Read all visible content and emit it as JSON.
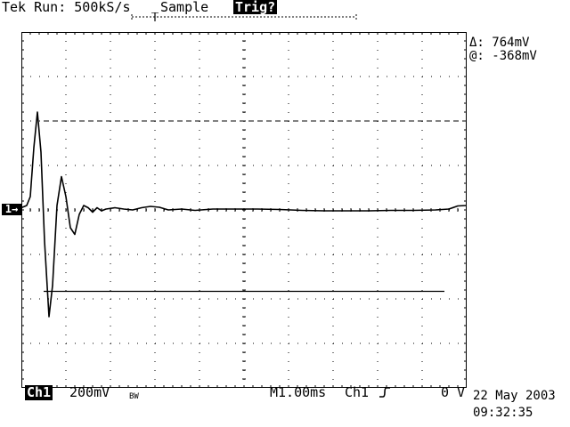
{
  "header": {
    "run_status": "Tek Run: 500kS/s",
    "acquisition_mode": "Sample",
    "trigger_status": "Trig?"
  },
  "measurements": {
    "delta": "Δ: 764mV",
    "at": "@: -368mV"
  },
  "channel_marker": "1→",
  "footer": {
    "channel": "Ch1",
    "scale": "200mV",
    "bw_indicator": "BW",
    "timebase": "M1.00ms",
    "trigger_source": "Ch1",
    "trigger_slope_icon": "rising-edge-icon",
    "trigger_level": "0 V"
  },
  "timestamp": {
    "date": "22 May 2003",
    "time": "09:32:35"
  },
  "chart_data": {
    "type": "line",
    "grid": true,
    "x_divisions": 10,
    "y_divisions": 8,
    "xlim": [
      0,
      10
    ],
    "ylim": [
      -4,
      4
    ],
    "cursor_upper_div": 2.0,
    "cursor_lower_div": -1.83,
    "series": [
      {
        "points": [
          [
            0.0,
            0.05
          ],
          [
            0.12,
            0.1
          ],
          [
            0.2,
            0.3
          ],
          [
            0.28,
            1.4
          ],
          [
            0.36,
            2.2
          ],
          [
            0.44,
            1.3
          ],
          [
            0.52,
            -0.7
          ],
          [
            0.62,
            -2.4
          ],
          [
            0.7,
            -1.7
          ],
          [
            0.8,
            0.1
          ],
          [
            0.9,
            0.75
          ],
          [
            1.0,
            0.3
          ],
          [
            1.1,
            -0.4
          ],
          [
            1.2,
            -0.55
          ],
          [
            1.3,
            -0.1
          ],
          [
            1.4,
            0.1
          ],
          [
            1.5,
            0.05
          ],
          [
            1.6,
            -0.05
          ],
          [
            1.7,
            0.05
          ],
          [
            1.8,
            -0.02
          ],
          [
            1.9,
            0.02
          ],
          [
            2.1,
            0.05
          ],
          [
            2.3,
            0.02
          ],
          [
            2.5,
            0.0
          ],
          [
            2.7,
            0.05
          ],
          [
            2.9,
            0.08
          ],
          [
            3.1,
            0.06
          ],
          [
            3.3,
            0.0
          ],
          [
            3.6,
            0.02
          ],
          [
            3.9,
            -0.01
          ],
          [
            4.3,
            0.02
          ],
          [
            4.8,
            0.02
          ],
          [
            5.3,
            0.02
          ],
          [
            5.8,
            0.01
          ],
          [
            6.3,
            -0.01
          ],
          [
            6.8,
            -0.02
          ],
          [
            7.3,
            -0.02
          ],
          [
            7.8,
            -0.02
          ],
          [
            8.3,
            -0.01
          ],
          [
            8.8,
            -0.01
          ],
          [
            9.3,
            0.0
          ],
          [
            9.6,
            0.02
          ],
          [
            9.8,
            0.09
          ],
          [
            10.0,
            0.1
          ]
        ]
      }
    ]
  }
}
